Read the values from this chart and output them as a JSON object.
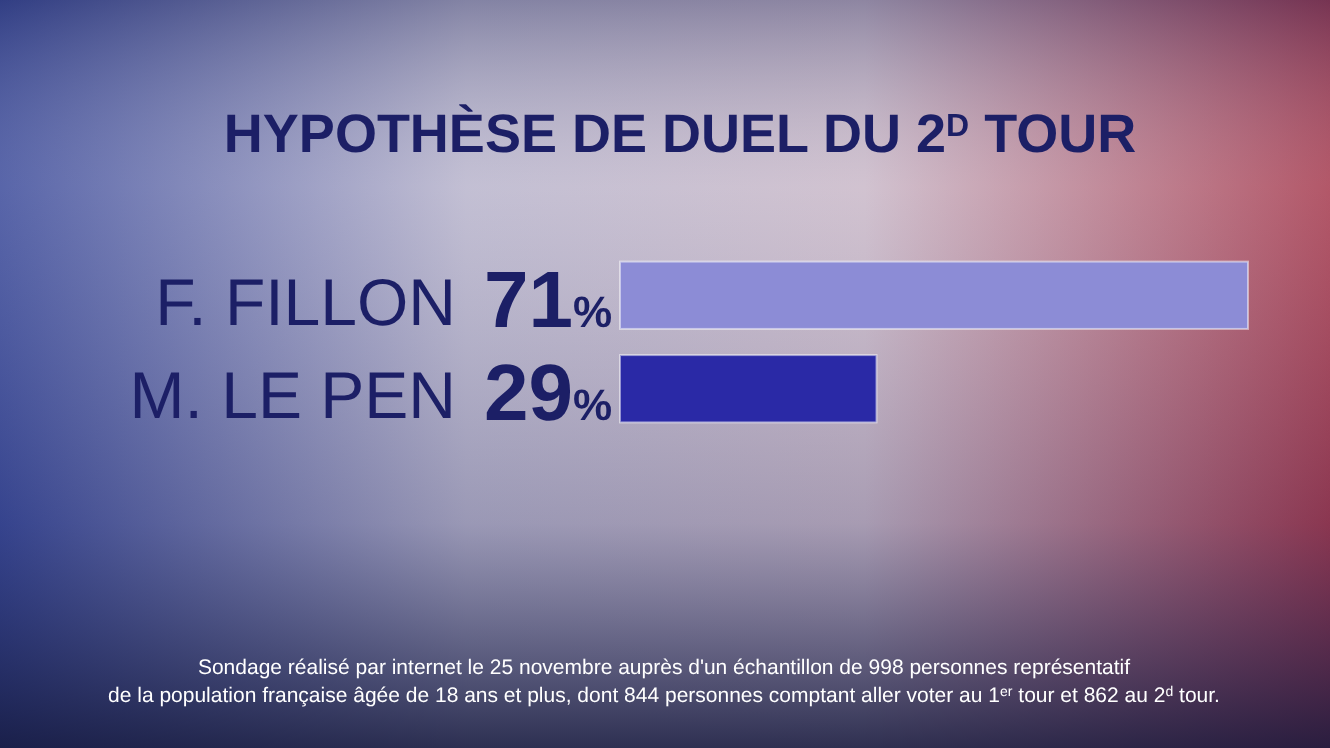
{
  "chart_data": {
    "type": "bar",
    "orientation": "horizontal",
    "title": "HYPOTHÈSE DE DUEL DU  2$^{D}$ TOUR",
    "categories": [
      "F. FILLON",
      "M. LE PEN"
    ],
    "values": [
      71,
      29
    ],
    "colors": [
      "#8c8cd6",
      "#2a29a6"
    ],
    "value_labels": [
      "71%",
      "29%"
    ],
    "annotations": [
      "Sondage réalisé par internet le 25 novembre auprès d'un échantillon de 998 personnes représentatif",
      "de la population française âgée de 18 ans et plus, dont 844 personnes comptant aller voter au 1$^{er}$ tour et 862 au 2$^{d}$ tour."
    ]
  }
}
